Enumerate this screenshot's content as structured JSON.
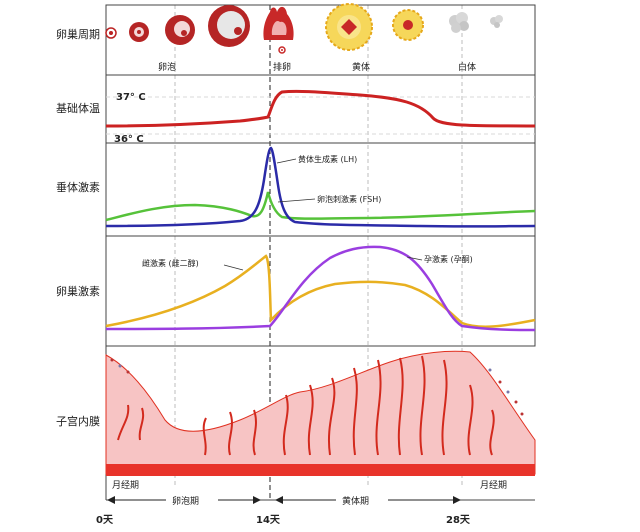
{
  "row_labels": {
    "ovarian_cycle": "卵巢周期",
    "basal_temp": "基础体温",
    "pituitary": "垂体激素",
    "ovarian_hormone": "卵巢激素",
    "endometrium": "子宫内膜"
  },
  "phase_labels": {
    "follicle": "卵泡",
    "ovulation": "排卵",
    "corpus_luteum": "黄体",
    "corpus_albicans": "白体"
  },
  "temperature": {
    "high": "37° C",
    "low": "36° C"
  },
  "curves": {
    "lh": "黄体生成素 (LH)",
    "fsh": "卵泡刺激素 (FSH)",
    "estrogen": "雌激素 (雌二醇)",
    "progesterone": "孕激素 (孕酮)"
  },
  "bottom": {
    "menses_left": "月经期",
    "menses_right": "月经期",
    "follicular_phase": "卵泡期",
    "luteal_phase": "黄体期",
    "day0": "0天",
    "day14": "14天",
    "day28": "28天"
  },
  "colors": {
    "lh": "#2b2ba8",
    "fsh": "#56c23a",
    "estrogen": "#e8b020",
    "progesterone": "#9a3ee0",
    "temperature": "#cc2222",
    "endometrium_fill": "#f7c4c4",
    "endometrium_line": "#e03020",
    "corpus_luteum": "#f6d75a"
  }
}
